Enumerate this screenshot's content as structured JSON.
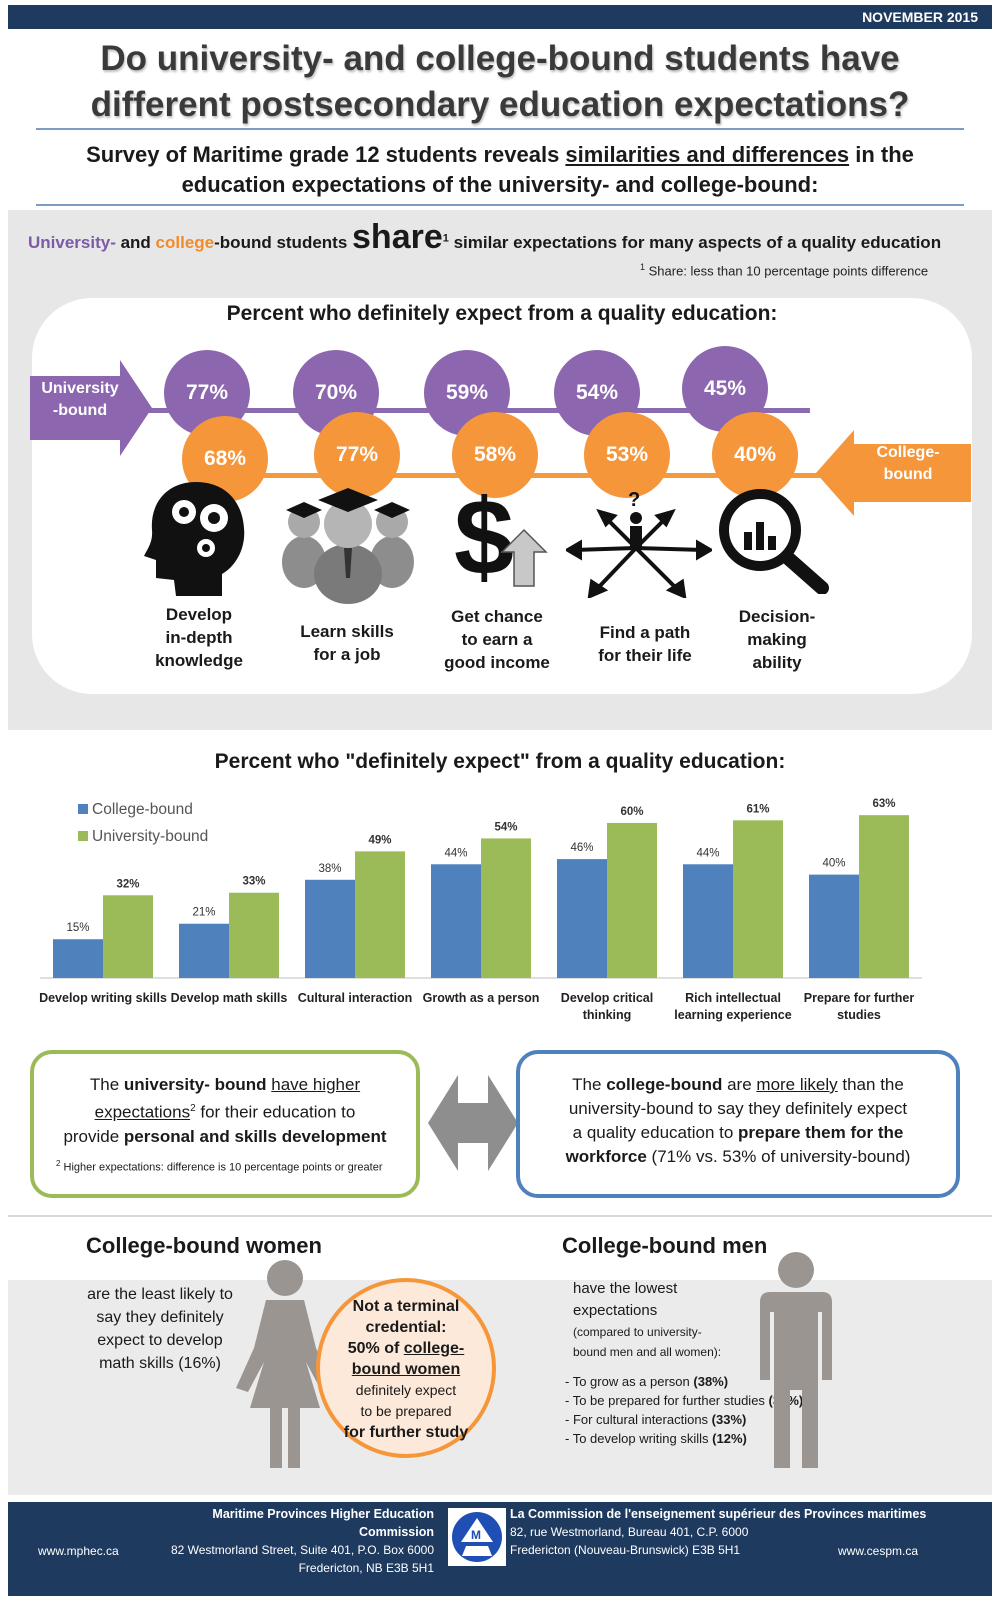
{
  "header": {
    "date": "NOVEMBER 2015",
    "title_line1": "Do university- and college-bound students have",
    "title_line2": "different postsecondary education expectations?",
    "subtitle_pre": "Survey of Maritime grade 12 students reveals ",
    "subtitle_underlined": "similarities and differences",
    "subtitle_post": " in the",
    "subtitle_line2": "education expectations of the university- and college-bound:"
  },
  "share_section": {
    "uni": "University-",
    "and": " and ",
    "col": "college",
    "bound_students": "-bound students ",
    "share_word": "share",
    "share_sup": "1",
    "rest": " similar expectations for many aspects of a quality education",
    "note_sup": "1",
    "note": " Share:  less than 10 percentage points difference",
    "card_title": "Percent who definitely expect from a quality education:",
    "uni_label_1": "University",
    "uni_label_2": "-bound",
    "col_label_1": "College-",
    "col_label_2": "bound",
    "items": [
      {
        "uni": "77%",
        "col": "68%",
        "label_lines": [
          "Develop",
          "in-depth",
          "knowledge"
        ],
        "icon": "head-gears-icon"
      },
      {
        "uni": "70%",
        "col": "77%",
        "label_lines": [
          "Learn skills",
          "for a job"
        ],
        "icon": "graduates-icon"
      },
      {
        "uni": "59%",
        "col": "58%",
        "label_lines": [
          "Get chance",
          "to earn a",
          "good income"
        ],
        "icon": "dollar-arrow-icon"
      },
      {
        "uni": "54%",
        "col": "53%",
        "label_lines": [
          "Find a path",
          "for their life"
        ],
        "icon": "crossroads-person-icon"
      },
      {
        "uni": "45%",
        "col": "40%",
        "label_lines": [
          "Decision-",
          "making",
          "ability"
        ],
        "icon": "magnifier-chart-icon"
      }
    ]
  },
  "chart_title": "Percent who \"definitely expect\" from a quality education:",
  "chart_data": {
    "type": "bar",
    "categories": [
      [
        "Develop writing skills"
      ],
      [
        "Develop math skills"
      ],
      [
        "Cultural interaction"
      ],
      [
        "Growth as a person"
      ],
      [
        "Develop critical",
        "thinking"
      ],
      [
        "Rich intellectual",
        "learning experience"
      ],
      [
        "Prepare for further",
        "studies"
      ]
    ],
    "series": [
      {
        "name": "College-bound",
        "color": "#4f81bd",
        "values": [
          15,
          21,
          38,
          44,
          46,
          44,
          40
        ]
      },
      {
        "name": "University-bound",
        "color": "#9bbb59",
        "values": [
          32,
          33,
          49,
          54,
          60,
          61,
          63
        ]
      }
    ],
    "value_suffix": "%",
    "ylim": [
      0,
      65
    ],
    "legend": "top-left",
    "grid": false
  },
  "green_box": {
    "p1": "The ",
    "b1": "university- bound",
    "p2": " ",
    "u1": "have higher",
    "u2": "expectations",
    "sup": "2",
    "p3": " for their education to",
    "p4": "provide ",
    "b2": "personal and skills development",
    "note_sup": "2",
    "note": " Higher expectations: difference is 10 percentage points or greater"
  },
  "blue_box": {
    "p1": "The ",
    "b1": "college-bound",
    "p2": " are ",
    "u1": "more likely",
    "p3": "  than the",
    "line2": "university-bound to say they definitely  expect",
    "p4": "a quality education to ",
    "b2": "prepare them for the",
    "b3": "workforce",
    "p5": " (71% vs. 53% of university-bound)"
  },
  "women": {
    "heading": "College-bound women",
    "text_lines": [
      "are the least likely to",
      "say they definitely",
      "expect to develop",
      "math skills  (16%)"
    ],
    "circle_b1": "Not a terminal",
    "circle_b2": "credential:",
    "circle_b3a": "50% of ",
    "circle_b3b": "college-",
    "circle_b4": "bound women",
    "circle_l5": "definitely expect",
    "circle_l6": "to be prepared",
    "circle_b7": "for further study"
  },
  "men": {
    "heading": "College-bound men",
    "intro1": "have the lowest",
    "intro2": "expectations",
    "intro3": "(compared to university-",
    "intro4": "bound men and all women):",
    "list": [
      {
        "text": "- To grow as a person ",
        "value": "(38%)"
      },
      {
        "text": "- To be prepared for further studies ",
        "value": "(33%)"
      },
      {
        "text": "- For cultural interactions ",
        "value": "(33%)"
      },
      {
        "text": "- To develop writing skills ",
        "value": "(12%)"
      }
    ]
  },
  "footer": {
    "org_en": "Maritime Provinces Higher Education Commission",
    "addr_en1": "82 Westmorland Street, Suite 401, P.O. Box 6000",
    "addr_en2": "Fredericton, NB E3B 5H1",
    "url_en": "www.mphec.ca",
    "org_fr": "La Commission de l'enseignement supérieur des Provinces maritimes",
    "addr_fr1": "82, rue Westmorland, Bureau 401, C.P. 6000",
    "addr_fr2": "Fredericton (Nouveau-Brunswick)  E3B 5H1",
    "url_fr": "www.cespm.ca"
  },
  "colors": {
    "navy": "#1f3a5f",
    "purple": "#8c67b0",
    "orange": "#f5963a",
    "blue": "#4f81bd",
    "green": "#9bbb59"
  }
}
